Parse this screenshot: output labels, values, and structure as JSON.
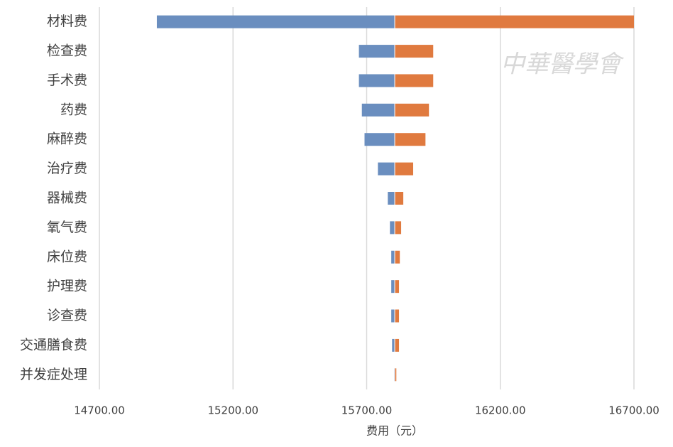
{
  "chart_data": {
    "type": "tornado",
    "categories": [
      "材料费",
      "检查费",
      "手术费",
      "药费",
      "麻醉费",
      "治疗费",
      "器械费",
      "氧气费",
      "床位费",
      "护理费",
      "诊查费",
      "交通膳食费",
      "并发症处理"
    ],
    "base": 15805,
    "series": [
      {
        "color": "#6a8ebf",
        "values": [
          14915,
          15671,
          15671,
          15682,
          15692,
          15742,
          15779,
          15787,
          15792,
          15792,
          15792,
          15795,
          15803
        ]
      },
      {
        "color": "#e07a3f",
        "values": [
          16700,
          15949,
          15949,
          15933,
          15920,
          15874,
          15837,
          15829,
          15824,
          15821,
          15821,
          15821,
          15811
        ]
      }
    ],
    "xlim": [
      14700,
      16700
    ],
    "xticks": [
      {
        "value": 14700,
        "label": "14700.00"
      },
      {
        "value": 15200,
        "label": "15200.00"
      },
      {
        "value": 15700,
        "label": "15700.00"
      },
      {
        "value": 16200,
        "label": "16200.00"
      },
      {
        "value": 16700,
        "label": "16700.00"
      }
    ],
    "x_label": "费用（元）",
    "grid": true,
    "watermark": "中華醫學會"
  }
}
